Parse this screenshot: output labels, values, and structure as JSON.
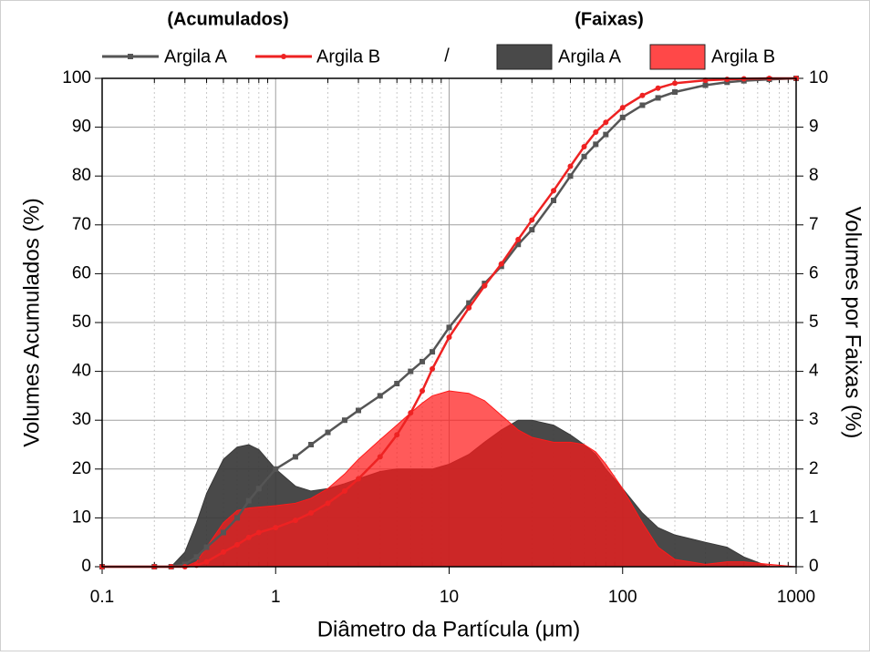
{
  "chart_data": {
    "type": "line",
    "legend_titles": [
      "(Acumulados)",
      "(Faixas)"
    ],
    "legend_separator": "/",
    "x_label": "Diâmetro da Partícula (μm)",
    "y_label": "Volumes Acumulados (%)",
    "y2_label": "Volumes por Faixas (%)",
    "x_scale": "log",
    "grid": true,
    "xlim": [
      0.1,
      1000
    ],
    "xticks": [
      0.1,
      1,
      10,
      100,
      1000
    ],
    "ylim": [
      0,
      100
    ],
    "yticks": [
      0,
      10,
      20,
      30,
      40,
      50,
      60,
      70,
      80,
      90,
      100
    ],
    "y2lim": [
      0,
      10
    ],
    "y2ticks": [
      0,
      1,
      2,
      3,
      4,
      5,
      6,
      7,
      8,
      9,
      10
    ],
    "x": [
      0.1,
      0.2,
      0.25,
      0.3,
      0.35,
      0.4,
      0.5,
      0.6,
      0.7,
      0.8,
      1,
      1.3,
      1.6,
      2,
      2.5,
      3,
      4,
      5,
      6,
      7,
      8,
      10,
      13,
      16,
      20,
      25,
      30,
      40,
      50,
      60,
      70,
      80,
      100,
      130,
      160,
      200,
      300,
      400,
      500,
      700,
      1000
    ],
    "series": [
      {
        "name": "Argila A",
        "type": "area",
        "axis": "y2",
        "color": "#3a3a3a",
        "values": [
          0,
          0,
          0,
          0.3,
          0.9,
          1.5,
          2.2,
          2.45,
          2.5,
          2.4,
          2.0,
          1.65,
          1.55,
          1.6,
          1.7,
          1.8,
          1.95,
          2.0,
          2.0,
          2.0,
          2.0,
          2.1,
          2.3,
          2.55,
          2.8,
          3.0,
          3.0,
          2.9,
          2.7,
          2.5,
          2.3,
          2.0,
          1.6,
          1.1,
          0.8,
          0.65,
          0.5,
          0.4,
          0.2,
          0,
          0
        ]
      },
      {
        "name": "Argila B",
        "type": "area",
        "axis": "y2",
        "color": "#ff1a1a",
        "values": [
          0,
          0,
          0,
          0,
          0.1,
          0.4,
          0.9,
          1.15,
          1.2,
          1.22,
          1.25,
          1.3,
          1.4,
          1.6,
          1.9,
          2.2,
          2.6,
          2.9,
          3.15,
          3.35,
          3.5,
          3.6,
          3.55,
          3.4,
          3.1,
          2.8,
          2.65,
          2.55,
          2.55,
          2.5,
          2.35,
          2.1,
          1.6,
          0.9,
          0.4,
          0.15,
          0.05,
          0.1,
          0.1,
          0.05,
          0
        ]
      },
      {
        "name": "Argila A",
        "type": "line",
        "color": "#555555",
        "values": [
          0,
          0,
          0,
          0.5,
          2,
          4,
          7,
          10,
          13.5,
          16,
          20,
          22.5,
          25,
          27.5,
          30,
          32,
          35,
          37.5,
          40,
          42,
          44,
          49,
          54,
          58,
          61.5,
          66,
          69,
          75,
          80,
          84,
          86.5,
          88.5,
          92,
          94.5,
          96,
          97.2,
          98.6,
          99.2,
          99.5,
          99.8,
          100
        ]
      },
      {
        "name": "Argila B",
        "type": "line",
        "color": "#ee2222",
        "values": [
          0,
          0,
          0,
          0,
          0.3,
          1,
          3,
          4.5,
          6,
          7,
          8,
          9.5,
          11,
          13,
          15.5,
          18,
          22.5,
          27,
          31.5,
          36,
          40.5,
          47,
          53,
          57.5,
          62,
          67,
          71,
          77,
          82,
          86,
          89,
          91,
          94,
          96.5,
          98,
          99,
          99.6,
          99.8,
          99.9,
          100,
          100
        ]
      }
    ]
  }
}
